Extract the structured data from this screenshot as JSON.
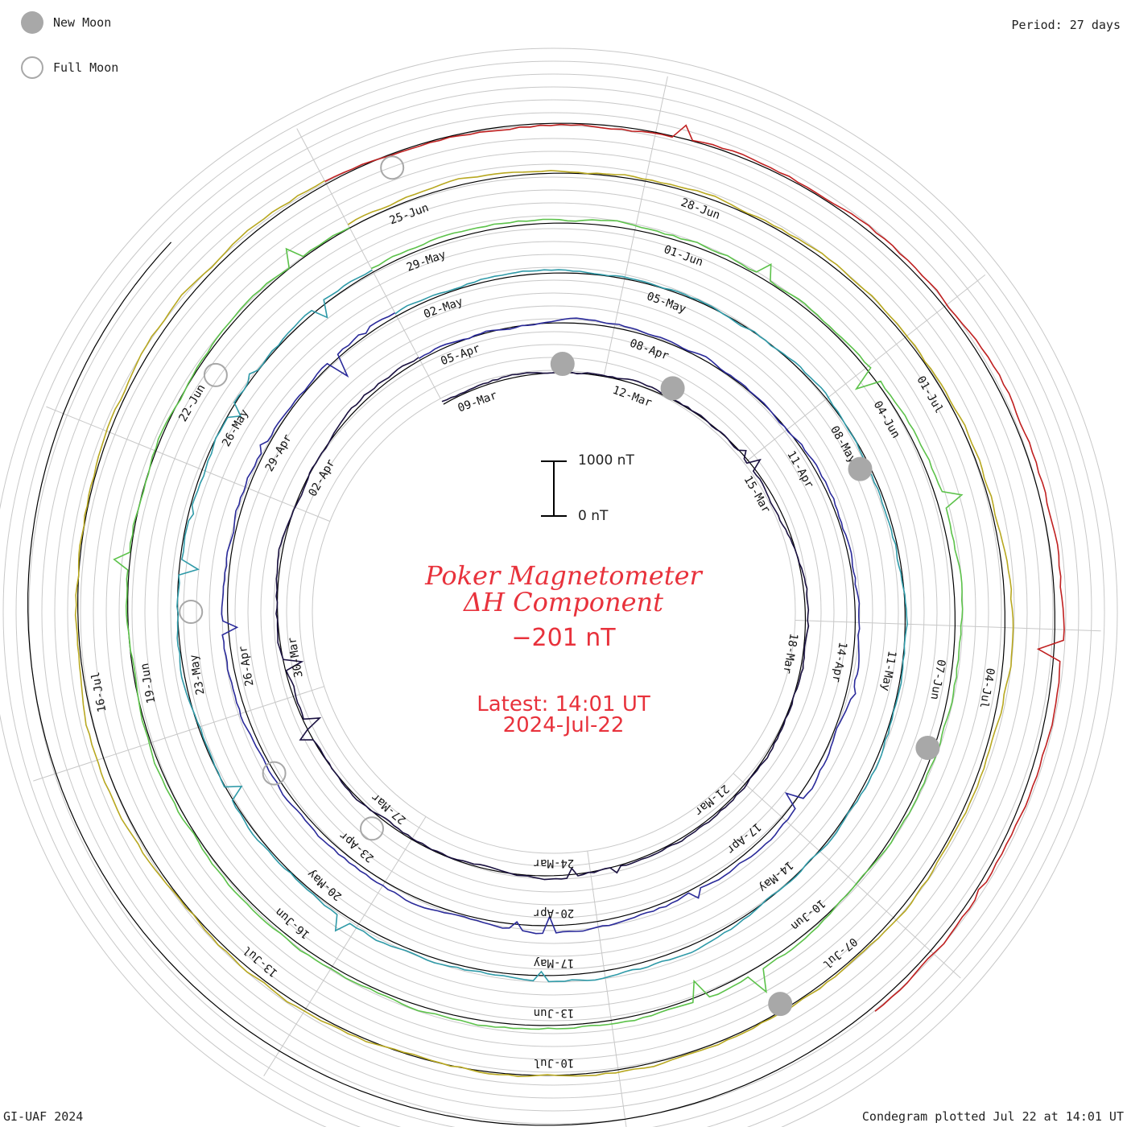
{
  "header": {
    "period": "Period: 27 days"
  },
  "legend": {
    "new_moon": "New Moon",
    "full_moon": "Full Moon"
  },
  "title": {
    "line1": "Poker Magnetometer",
    "line2": "ΔH Component"
  },
  "current_value": "−201 nT",
  "latest": {
    "line1": "Latest: 14:01 UT",
    "line2": "2024-Jul-22"
  },
  "scale": {
    "top": "1000 nT",
    "bottom": "0 nT"
  },
  "footer": {
    "credit": "GI-UAF 2024",
    "plotted": "Condegram plotted Jul 22 at 14:01 UT"
  },
  "colors": {
    "moon": "#a8a8a8",
    "grid": "#c8c8c8",
    "text_red": "#e8323c"
  },
  "chart_data": {
    "type": "line",
    "layout": "spiral condegram",
    "period_days": 27,
    "series": [
      {
        "color": "#1a1140",
        "date_labels": [
          "09-Mar",
          "12-Mar",
          "15-Mar",
          "18-Mar",
          "21-Mar",
          "24-Mar",
          "27-Mar",
          "30-Mar",
          "02-Apr"
        ]
      },
      {
        "color": "#2a2a9a",
        "date_labels": [
          "05-Apr",
          "08-Apr",
          "11-Apr",
          "14-Apr",
          "17-Apr",
          "20-Apr",
          "23-Apr",
          "26-Apr",
          "29-Apr"
        ]
      },
      {
        "color": "#2f9aa8",
        "date_labels": [
          "02-May",
          "05-May",
          "08-May",
          "11-May",
          "14-May",
          "17-May",
          "20-May",
          "23-May",
          "26-May"
        ]
      },
      {
        "color": "#5cc24a",
        "date_labels": [
          "29-May",
          "01-Jun",
          "04-Jun",
          "07-Jun",
          "10-Jun",
          "13-Jun",
          "16-Jun",
          "19-Jun",
          "22-Jun"
        ]
      },
      {
        "color": "#b8a820",
        "date_labels": [
          "25-Jun",
          "28-Jun",
          "01-Jul",
          "04-Jul",
          "07-Jul",
          "10-Jul",
          "13-Jul",
          "16-Jul"
        ]
      },
      {
        "color": "#c02020",
        "date_labels": []
      }
    ]
  }
}
